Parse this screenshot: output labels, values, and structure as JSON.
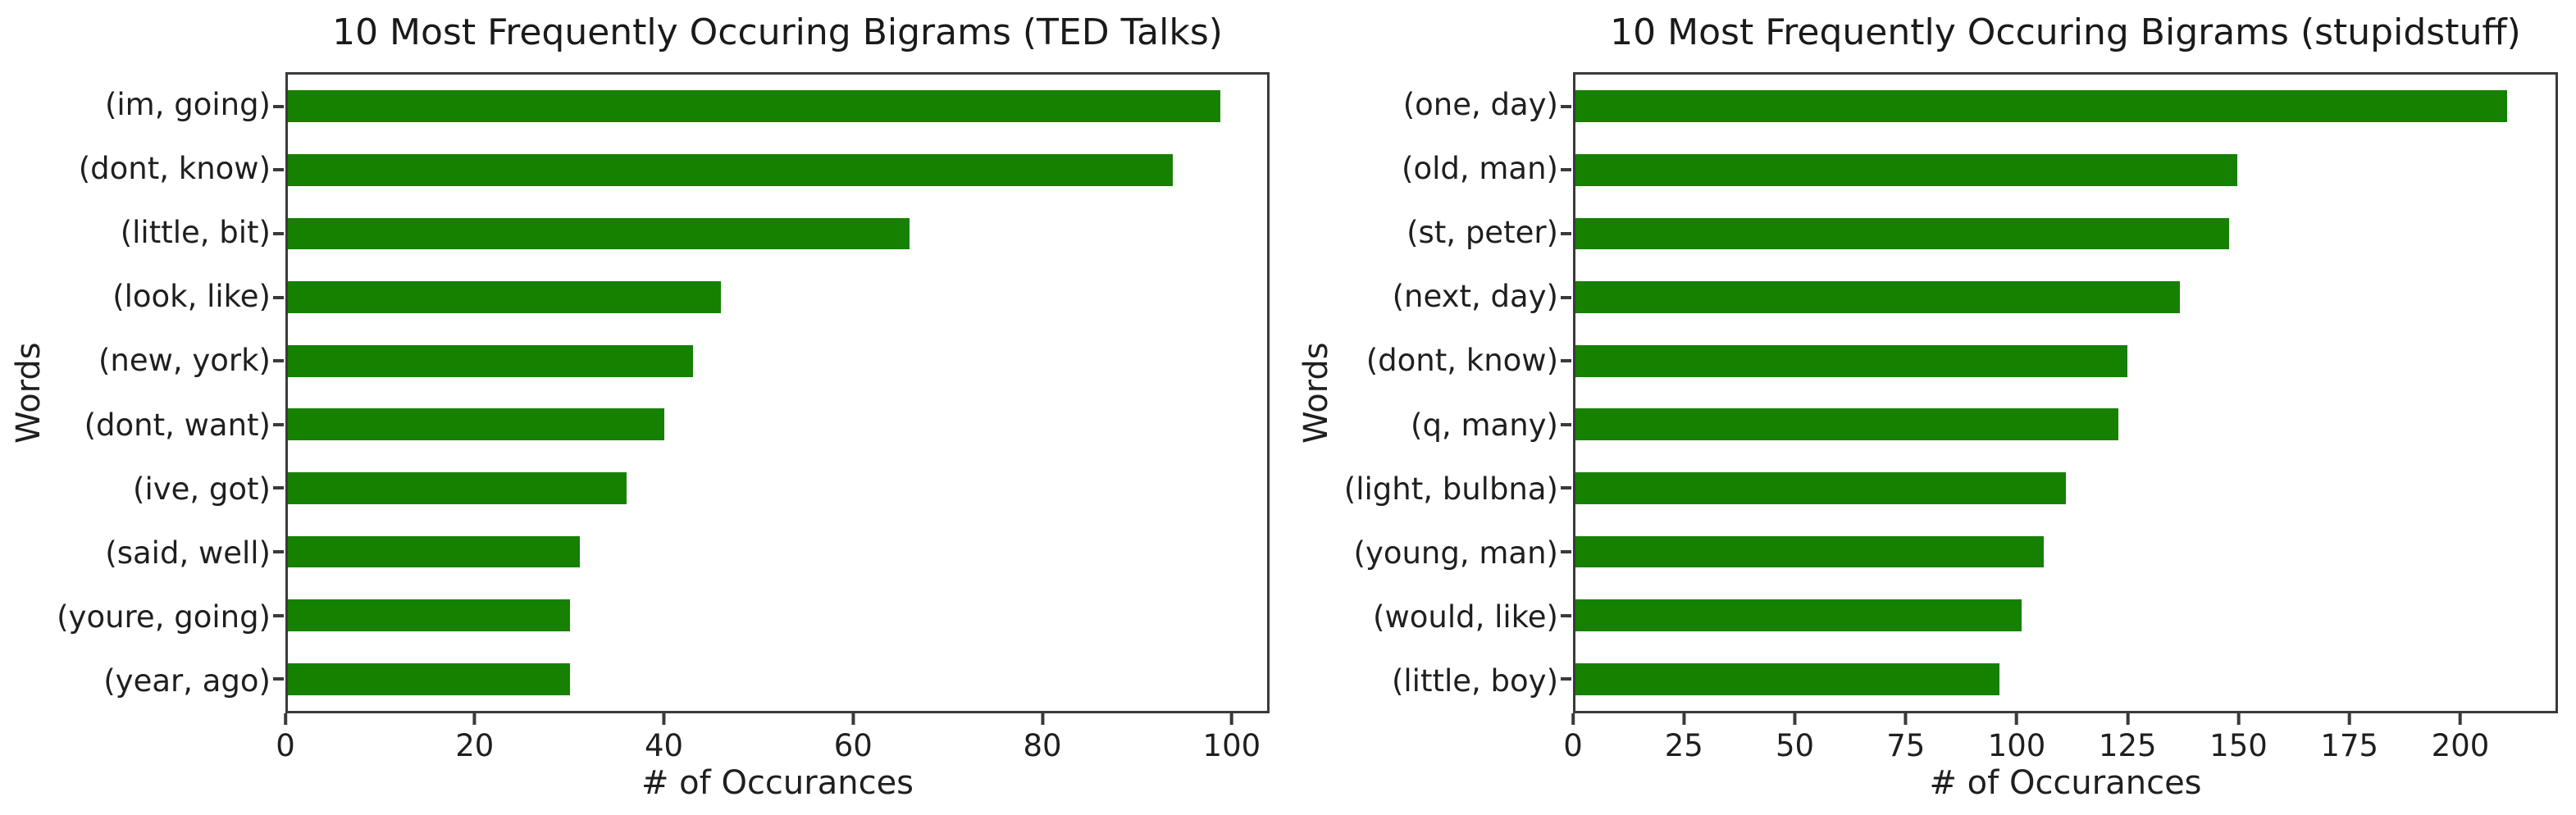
{
  "figure": {
    "background": "#ffffff",
    "text_color": "#1f1f1f",
    "spine_color": "#3a3a3a"
  },
  "chart_data": [
    {
      "type": "bar",
      "orientation": "horizontal",
      "title": "10 Most Frequently Occuring Bigrams (TED Talks)",
      "xlabel": "# of Occurances",
      "ylabel": "Words",
      "categories": [
        "(im, going)",
        "(dont, know)",
        "(little, bit)",
        "(look, like)",
        "(new, york)",
        "(dont, want)",
        "(ive, got)",
        "(said, well)",
        "(youre, going)",
        "(year, ago)"
      ],
      "values": [
        99,
        94,
        66,
        46,
        43,
        40,
        36,
        31,
        30,
        30
      ],
      "xticks": [
        0,
        20,
        40,
        60,
        80,
        100
      ],
      "xlim": [
        0,
        104
      ],
      "bar_color": "#168000",
      "grid": false,
      "legend_position": "none"
    },
    {
      "type": "bar",
      "orientation": "horizontal",
      "title": "10 Most Frequently Occuring Bigrams (stupidstuff)",
      "xlabel": "# of Occurances",
      "ylabel": "Words",
      "categories": [
        "(one, day)",
        "(old, man)",
        "(st, peter)",
        "(next, day)",
        "(dont, know)",
        "(q, many)",
        "(light, bulbna)",
        "(young, man)",
        "(would, like)",
        "(little, boy)"
      ],
      "values": [
        211,
        150,
        148,
        137,
        125,
        123,
        111,
        106,
        101,
        96
      ],
      "xticks": [
        0,
        25,
        50,
        75,
        100,
        125,
        150,
        175,
        200
      ],
      "xlim": [
        0,
        222
      ],
      "bar_color": "#168000",
      "grid": false,
      "legend_position": "none"
    }
  ]
}
